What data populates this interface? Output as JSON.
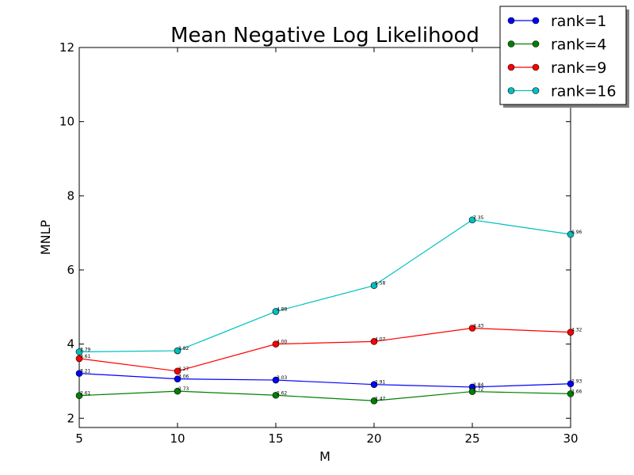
{
  "chart_data": {
    "type": "line",
    "title": "Mean Negative Log Likelihood",
    "xlabel": "M",
    "ylabel": "MNLP",
    "x": [
      5,
      10,
      15,
      20,
      25,
      30
    ],
    "xlim": [
      5,
      30
    ],
    "ylim": [
      1.75,
      12
    ],
    "xticks": [
      "5",
      "10",
      "15",
      "20",
      "25",
      "30"
    ],
    "yticks": [
      "2",
      "4",
      "6",
      "8",
      "10",
      "12"
    ],
    "grid": false,
    "legend_placement": "top-right",
    "series": [
      {
        "name": "rank=1",
        "color": "#0000ff",
        "values": [
          3.21,
          3.06,
          3.03,
          2.91,
          2.84,
          2.93
        ],
        "labels": [
          "3.21",
          "3.06",
          "3.03",
          "2.91",
          "2.84",
          "2.93"
        ]
      },
      {
        "name": "rank=4",
        "color": "#008000",
        "values": [
          2.61,
          2.73,
          2.62,
          2.47,
          2.72,
          2.66
        ],
        "labels": [
          "2.61",
          "2.73",
          "2.62",
          "2.47",
          "2.72",
          "2.66"
        ]
      },
      {
        "name": "rank=9",
        "color": "#ff0000",
        "values": [
          3.61,
          3.27,
          4.0,
          4.07,
          4.43,
          4.32
        ],
        "labels": [
          "3.61",
          "3.27",
          "4.00",
          "4.07",
          "4.43",
          "4.32"
        ]
      },
      {
        "name": "rank=16",
        "color": "#00bfbf",
        "values": [
          3.79,
          3.82,
          4.88,
          5.58,
          7.35,
          6.96
        ],
        "labels": [
          "3.79",
          "3.82",
          "4.88",
          "5.58",
          "7.35",
          "6.96"
        ]
      }
    ]
  }
}
